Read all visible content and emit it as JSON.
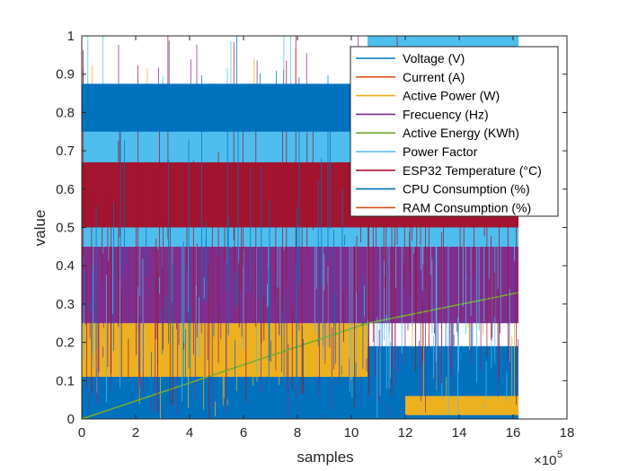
{
  "chart_data": {
    "type": "line",
    "title": "",
    "xlabel": "samples",
    "ylabel": "value",
    "x_exponent_label": "×10",
    "x_exponent": "5",
    "xlim": [
      0,
      18
    ],
    "ylim": [
      0,
      1
    ],
    "x_ticks": [
      0,
      2,
      4,
      6,
      8,
      10,
      12,
      14,
      16,
      18
    ],
    "y_ticks": [
      0,
      0.1,
      0.2,
      0.3,
      0.4,
      0.5,
      0.6,
      0.7,
      0.8,
      0.9,
      1
    ],
    "x_tick_labels": [
      "0",
      "2",
      "4",
      "6",
      "8",
      "10",
      "12",
      "14",
      "16",
      "18"
    ],
    "y_tick_labels": [
      "0",
      "0.1",
      "0.2",
      "0.3",
      "0.4",
      "0.5",
      "0.6",
      "0.7",
      "0.8",
      "0.9",
      "1"
    ],
    "grid": false,
    "legend_position": "top-right",
    "series": [
      {
        "name": "Voltage (V)",
        "color": "#0072BD",
        "bands": [
          {
            "x0": 0,
            "x1": 10.6,
            "y0": 0,
            "y1": 0.12
          },
          {
            "x0": 10.6,
            "x1": 16.2,
            "y0": 0,
            "y1": 0.19
          }
        ],
        "trend": [
          [
            0,
            0.02
          ],
          [
            10.6,
            0.03
          ],
          [
            10.6,
            0.05
          ],
          [
            16.2,
            0.1
          ]
        ]
      },
      {
        "name": "Current (A)",
        "color": "#D95319",
        "trend": [
          [
            0,
            0.47
          ],
          [
            2.9,
            0.53
          ],
          [
            2.9,
            0.76
          ],
          [
            3.9,
            0.78
          ],
          [
            3.9,
            0.72
          ],
          [
            6,
            0.8
          ],
          [
            9,
            0.86
          ],
          [
            10.2,
            0.87
          ]
        ]
      },
      {
        "name": "Active Power (W)",
        "color": "#EDB120",
        "bands": [
          {
            "x0": 0,
            "x1": 10.6,
            "y0": 0.11,
            "y1": 0.25
          },
          {
            "x0": 12,
            "x1": 16.2,
            "y0": 0.01,
            "y1": 0.06
          }
        ]
      },
      {
        "name": "Frecuency (Hz)",
        "color": "#7E2F8E",
        "bands": [
          {
            "x0": 0,
            "x1": 16.2,
            "y0": 0.25,
            "y1": 0.45
          },
          {
            "x0": 0,
            "x1": 16.2,
            "y0": 0.66,
            "y1": 0.75
          }
        ]
      },
      {
        "name": "Active Energy (KWh)",
        "color": "#77AC30",
        "trend": [
          [
            0,
            0
          ],
          [
            10.6,
            0.25
          ],
          [
            16.2,
            0.33
          ]
        ]
      },
      {
        "name": "Power Factor",
        "color": "#4DBEEE",
        "bands": [
          {
            "x0": 0,
            "x1": 16.2,
            "y0": 0.45,
            "y1": 0.87
          },
          {
            "x0": 10.6,
            "x1": 16.2,
            "y0": 0.87,
            "y1": 1.0
          }
        ]
      },
      {
        "name": "ESP32 Temperature (°C)",
        "color": "#A2142F",
        "bands": [
          {
            "x0": 0,
            "x1": 16.2,
            "y0": 0.5,
            "y1": 0.67
          }
        ]
      },
      {
        "name": "CPU Consumption (%)",
        "color": "#0072BD",
        "bands": [
          {
            "x0": 0,
            "x1": 10.6,
            "y0": 0.75,
            "y1": 0.875
          }
        ]
      },
      {
        "name": "RAM Consumption (%)",
        "color": "#D95319",
        "trend": []
      }
    ]
  }
}
